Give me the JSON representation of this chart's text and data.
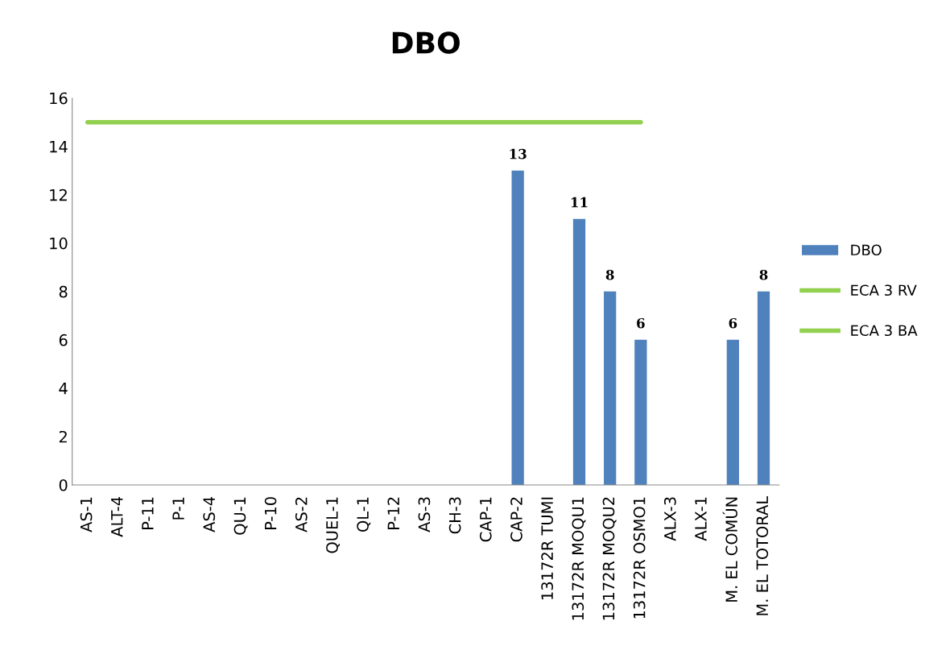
{
  "chart_data": {
    "type": "bar",
    "title": "DBO",
    "categories": [
      "AS-1",
      "ALT-4",
      "P-11",
      "P-1",
      "AS-4",
      "QU-1",
      "P-10",
      "AS-2",
      "QUEL-1",
      "QL-1",
      "P-12",
      "AS-3",
      "CH-3",
      "CAP-1",
      "CAP-2",
      "13172R TUMI",
      "13172R MOQU1",
      "13172R MOQU2",
      "13172R OSMO1",
      "ALX-3",
      "ALX-1",
      "M. EL COMÚN",
      "M. EL TOTORAL"
    ],
    "series": [
      {
        "name": "DBO",
        "color": "#4f81bd",
        "values": [
          null,
          null,
          null,
          null,
          null,
          null,
          null,
          null,
          null,
          null,
          null,
          null,
          null,
          null,
          13,
          null,
          11,
          8,
          6,
          null,
          null,
          6,
          8
        ],
        "value_labels": [
          null,
          null,
          null,
          null,
          null,
          null,
          null,
          null,
          null,
          null,
          null,
          null,
          null,
          null,
          "13",
          null,
          "11",
          "8",
          "6",
          null,
          null,
          "6",
          "8"
        ]
      },
      {
        "name": "ECA 3 RV",
        "type": "line",
        "color": "#92d050",
        "values": [
          15,
          15,
          15,
          15,
          15,
          15,
          15,
          15,
          15,
          15,
          15,
          15,
          15,
          15,
          15,
          15,
          15,
          15,
          15,
          null,
          null,
          null,
          null
        ]
      },
      {
        "name": "ECA 3 BA",
        "type": "line",
        "color": "#92d050",
        "values": [
          null,
          null,
          null,
          null,
          null,
          null,
          null,
          null,
          null,
          null,
          null,
          null,
          null,
          null,
          null,
          null,
          null,
          null,
          null,
          null,
          null,
          null,
          null
        ]
      }
    ],
    "ylim": [
      0,
      16
    ],
    "yticks": [
      0,
      2,
      4,
      6,
      8,
      10,
      12,
      14,
      16
    ],
    "grid": false,
    "legend": "right",
    "marker": "none"
  }
}
